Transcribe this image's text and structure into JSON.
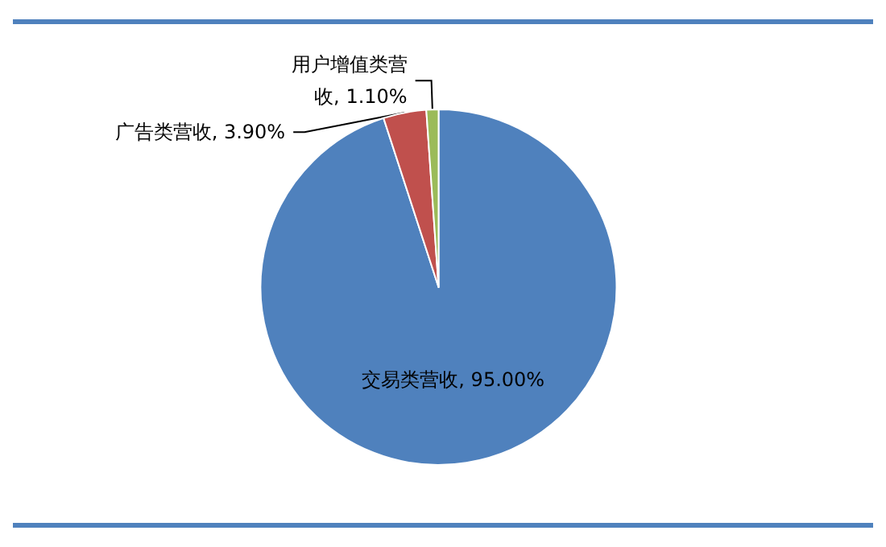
{
  "chart_data": {
    "type": "pie",
    "categories": [
      "交易类营收",
      "广告类营收",
      "用户增值类营收"
    ],
    "values": [
      95,
      3.9,
      1.1
    ],
    "value_labels": [
      "95.00%",
      "3.90%",
      "1.10%"
    ],
    "colors": [
      "#4f81bd",
      "#c0504d",
      "#9bbb59"
    ],
    "legend": false
  }
}
